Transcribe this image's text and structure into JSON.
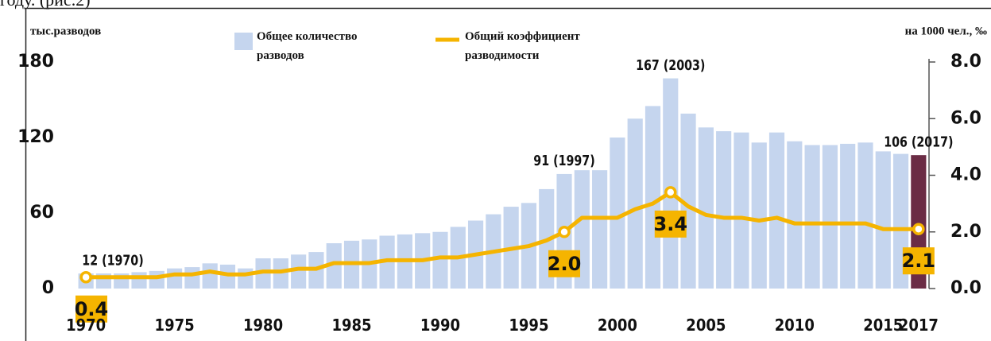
{
  "caption": "году. (рис.2)",
  "chart_data": {
    "type": "bar_line",
    "y_label": "тыс.разводов",
    "y2_label": "на 1000 чел., ‰",
    "categories": [
      "1970",
      null,
      null,
      null,
      null,
      "1975",
      null,
      null,
      null,
      null,
      "1980",
      null,
      null,
      null,
      null,
      "1985",
      null,
      null,
      null,
      null,
      "1990",
      null,
      null,
      null,
      null,
      "1995",
      null,
      null,
      null,
      null,
      "2000",
      null,
      null,
      null,
      null,
      "2005",
      null,
      null,
      null,
      null,
      "2010",
      null,
      null,
      null,
      null,
      "2015",
      null,
      "2017"
    ],
    "series": [
      {
        "name": "Общее количество разводов",
        "type": "bar",
        "color": "#c5d5ee",
        "colors": [
          "#c5d5ee",
          "#c5d5ee",
          "#c5d5ee",
          "#c5d5ee",
          "#c5d5ee",
          "#c5d5ee",
          "#c5d5ee",
          "#c5d5ee",
          "#c5d5ee",
          "#c5d5ee",
          "#c5d5ee",
          "#c5d5ee",
          "#c5d5ee",
          "#c5d5ee",
          "#c5d5ee",
          "#c5d5ee",
          "#c5d5ee",
          "#c5d5ee",
          "#c5d5ee",
          "#c5d5ee",
          "#c5d5ee",
          "#c5d5ee",
          "#c5d5ee",
          "#c5d5ee",
          "#c5d5ee",
          "#c5d5ee",
          "#c5d5ee",
          "#c5d5ee",
          "#c5d5ee",
          "#c5d5ee",
          "#c5d5ee",
          "#c5d5ee",
          "#c5d5ee",
          "#c5d5ee",
          "#c5d5ee",
          "#c5d5ee",
          "#c5d5ee",
          "#c5d5ee",
          "#c5d5ee",
          "#c5d5ee",
          "#c5d5ee",
          "#c5d5ee",
          "#c5d5ee",
          "#c5d5ee",
          "#c5d5ee",
          "#c5d5ee",
          "#c5d5ee",
          "#6b2c45"
        ],
        "values": [
          12,
          12,
          12,
          13,
          14,
          16,
          17,
          20,
          19,
          16,
          24,
          24,
          27,
          29,
          36,
          38,
          39,
          42,
          43,
          44,
          45,
          49,
          54,
          59,
          65,
          68,
          79,
          91,
          94,
          94,
          120,
          135,
          145,
          167,
          139,
          128,
          125,
          124,
          116,
          124,
          117,
          114,
          114,
          115,
          116,
          109,
          107,
          106
        ],
        "value_labels": [
          "12 (1970)",
          null,
          null,
          null,
          null,
          null,
          null,
          null,
          null,
          null,
          null,
          null,
          null,
          null,
          null,
          null,
          null,
          null,
          null,
          null,
          null,
          null,
          null,
          null,
          null,
          null,
          null,
          "91 (1997)",
          null,
          null,
          null,
          null,
          null,
          "167 (2003)",
          null,
          null,
          null,
          null,
          null,
          null,
          null,
          null,
          null,
          null,
          null,
          null,
          null,
          "106 (2017)"
        ]
      },
      {
        "name": "Общий коэффициент разводимости",
        "type": "line",
        "axis": "y2",
        "color": "#f5b400",
        "values": [
          0.4,
          0.4,
          0.4,
          0.4,
          0.4,
          0.5,
          0.5,
          0.6,
          0.5,
          0.5,
          0.6,
          0.6,
          0.7,
          0.7,
          0.9,
          0.9,
          0.9,
          1.0,
          1.0,
          1.0,
          1.1,
          1.1,
          1.2,
          1.3,
          1.4,
          1.5,
          1.7,
          2.0,
          2.5,
          2.5,
          2.5,
          2.8,
          3.0,
          3.4,
          2.9,
          2.6,
          2.5,
          2.5,
          2.4,
          2.5,
          2.3,
          2.3,
          2.3,
          2.3,
          2.3,
          2.1,
          2.1,
          2.1
        ],
        "value_labels": [
          "0.4",
          null,
          null,
          null,
          null,
          null,
          null,
          null,
          null,
          null,
          null,
          null,
          null,
          null,
          null,
          null,
          null,
          null,
          null,
          null,
          null,
          null,
          null,
          null,
          null,
          null,
          null,
          "2.0",
          null,
          null,
          null,
          null,
          null,
          "3.4",
          null,
          null,
          null,
          null,
          null,
          null,
          null,
          null,
          null,
          null,
          null,
          null,
          null,
          "2.1"
        ]
      }
    ],
    "ylim": [
      0,
      180
    ],
    "yticks": [
      0,
      60,
      120,
      180
    ],
    "y2lim": [
      0,
      8
    ],
    "y2ticks": [
      {
        "value": 0,
        "label": "0.0"
      },
      {
        "value": 2,
        "label": "2.0"
      },
      {
        "value": 4,
        "label": "4.0"
      },
      {
        "value": 6,
        "label": "6.0"
      },
      {
        "value": 8,
        "label": "8.0"
      }
    ],
    "legend": "top"
  }
}
